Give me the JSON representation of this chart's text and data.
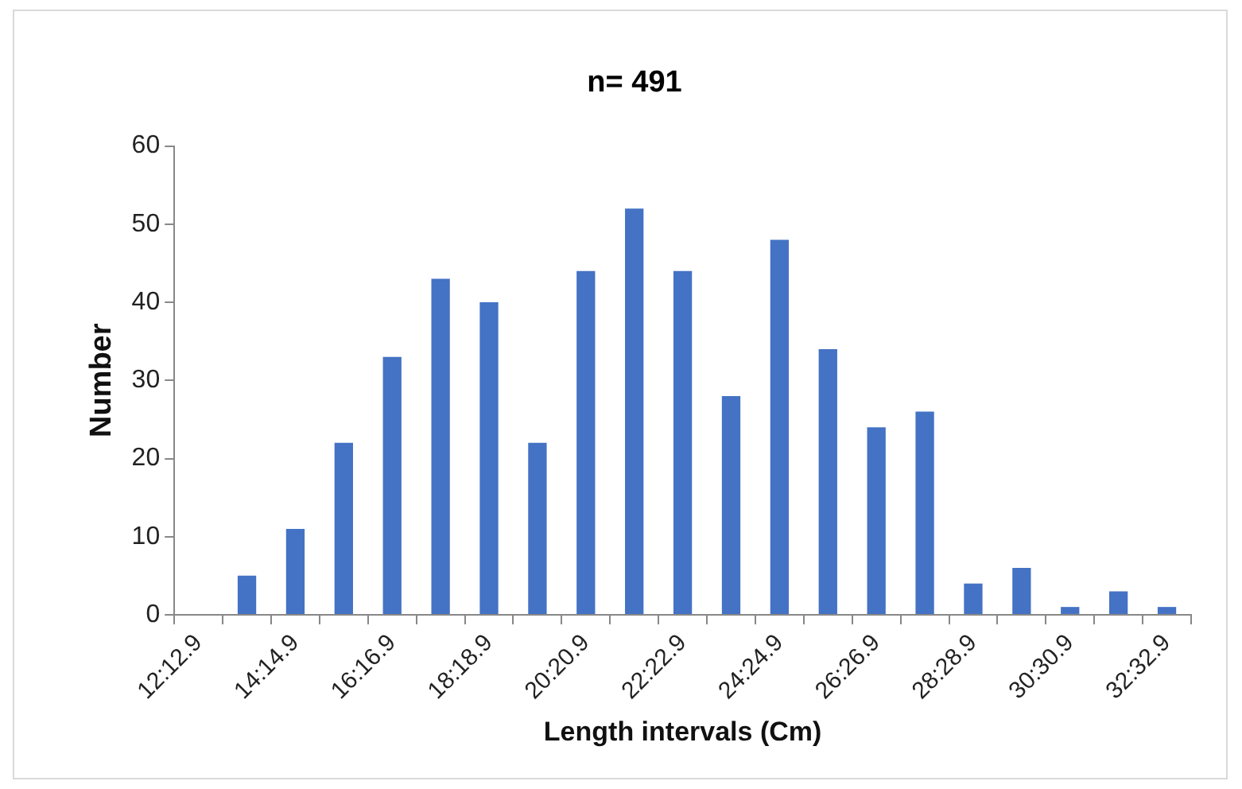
{
  "chart_data": {
    "type": "bar",
    "title": "n= 491",
    "xlabel": "Length intervals (Cm)",
    "ylabel": "Number",
    "categories": [
      "12:12.9",
      null,
      "14:14.9",
      null,
      "16:16.9",
      null,
      "18:18.9",
      null,
      "20:20.9",
      null,
      "22:22.9",
      null,
      "24:24.9",
      null,
      "26:26.9",
      null,
      "28:28.9",
      null,
      "30:30.9",
      null,
      "32:32.9"
    ],
    "values": [
      0,
      5,
      11,
      22,
      33,
      43,
      40,
      22,
      44,
      52,
      44,
      28,
      48,
      34,
      24,
      26,
      4,
      6,
      1,
      3,
      1
    ],
    "color": "#4472c4",
    "ylim": [
      0,
      60
    ],
    "yticks": [
      0,
      10,
      20,
      30,
      40,
      50,
      60
    ],
    "grid": false,
    "legend": false
  }
}
